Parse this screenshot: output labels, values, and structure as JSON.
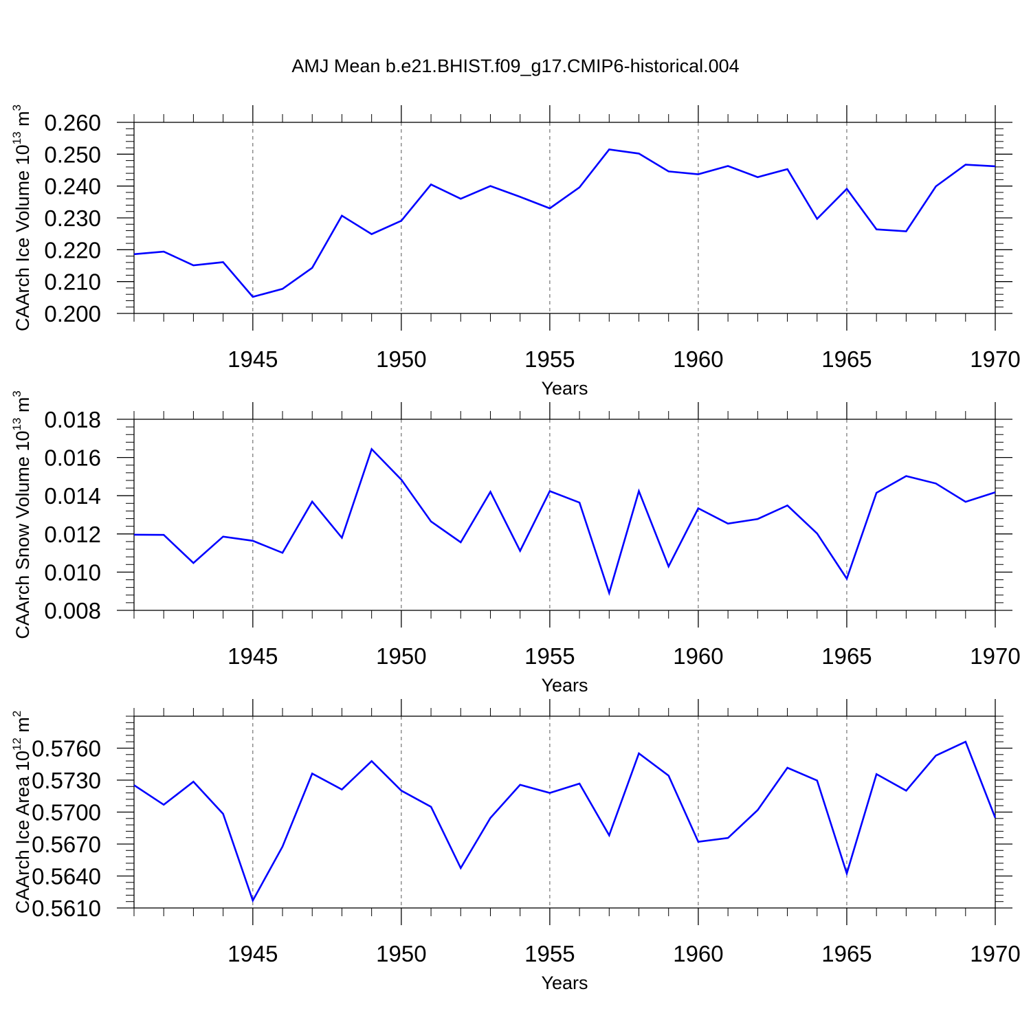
{
  "title": "AMJ Mean b.e21.BHIST.f09_g17.CMIP6-historical.004",
  "line_color": "#0000ff",
  "chart_data": [
    {
      "type": "line",
      "title": "AMJ Mean b.e21.BHIST.f09_g17.CMIP6-historical.004",
      "ylabel_main": "CAArch Ice Volume 10",
      "ylabel_exp": "13",
      "ylabel_unit": " m",
      "ylabel_unit_exp": "3",
      "xlabel": "Years",
      "xlim": [
        1941,
        1970
      ],
      "ylim": [
        0.2,
        0.26
      ],
      "xticks": [
        1945,
        1950,
        1955,
        1960,
        1965,
        1970
      ],
      "yticks": [
        0.2,
        0.21,
        0.22,
        0.23,
        0.24,
        0.25,
        0.26
      ],
      "ytick_labels": [
        "0.200",
        "0.210",
        "0.220",
        "0.230",
        "0.240",
        "0.250",
        "0.260"
      ],
      "grid": "vertical dashed at major x ticks",
      "x": [
        1941,
        1942,
        1943,
        1944,
        1945,
        1946,
        1947,
        1948,
        1949,
        1950,
        1951,
        1952,
        1953,
        1954,
        1955,
        1956,
        1957,
        1958,
        1959,
        1960,
        1961,
        1962,
        1963,
        1964,
        1965,
        1966,
        1967,
        1968,
        1969,
        1970
      ],
      "values": [
        0.2186,
        0.2194,
        0.2151,
        0.2161,
        0.2052,
        0.2077,
        0.2143,
        0.2307,
        0.2249,
        0.2291,
        0.2405,
        0.236,
        0.24,
        0.2366,
        0.233,
        0.2396,
        0.2515,
        0.2502,
        0.2446,
        0.2437,
        0.2463,
        0.2428,
        0.2453,
        0.2297,
        0.2391,
        0.2264,
        0.2258,
        0.2399,
        0.2467,
        0.2462
      ]
    },
    {
      "type": "line",
      "ylabel_main": "CAArch Snow Volume 10",
      "ylabel_exp": "13",
      "ylabel_unit": " m",
      "ylabel_unit_exp": "3",
      "xlabel": "Years",
      "xlim": [
        1941,
        1970
      ],
      "ylim": [
        0.008,
        0.018
      ],
      "xticks": [
        1945,
        1950,
        1955,
        1960,
        1965,
        1970
      ],
      "yticks": [
        0.008,
        0.01,
        0.012,
        0.014,
        0.016,
        0.018
      ],
      "ytick_labels": [
        "0.008",
        "0.010",
        "0.012",
        "0.014",
        "0.016",
        "0.018"
      ],
      "grid": "vertical dashed at major x ticks",
      "x": [
        1941,
        1942,
        1943,
        1944,
        1945,
        1946,
        1947,
        1948,
        1949,
        1950,
        1951,
        1952,
        1953,
        1954,
        1955,
        1956,
        1957,
        1958,
        1959,
        1960,
        1961,
        1962,
        1963,
        1964,
        1965,
        1966,
        1967,
        1968,
        1969,
        1970
      ],
      "values": [
        0.01196,
        0.01195,
        0.01048,
        0.01186,
        0.01164,
        0.01101,
        0.01369,
        0.0118,
        0.01644,
        0.01484,
        0.01265,
        0.01156,
        0.0142,
        0.01111,
        0.01424,
        0.01364,
        0.00891,
        0.01424,
        0.0103,
        0.01334,
        0.01254,
        0.01278,
        0.01349,
        0.01202,
        0.00966,
        0.01415,
        0.01503,
        0.01464,
        0.01368,
        0.01418
      ]
    },
    {
      "type": "line",
      "ylabel_main": "CAArch Ice Area 10",
      "ylabel_exp": "12",
      "ylabel_unit": " m",
      "ylabel_unit_exp": "2",
      "xlabel": "Years",
      "xlim": [
        1941,
        1970
      ],
      "ylim": [
        0.561,
        0.579
      ],
      "xticks": [
        1945,
        1950,
        1955,
        1960,
        1965,
        1970
      ],
      "yticks": [
        0.561,
        0.564,
        0.567,
        0.57,
        0.573,
        0.576
      ],
      "ytick_labels": [
        "0.5610",
        "0.5640",
        "0.5670",
        "0.5700",
        "0.5730",
        "0.5760"
      ],
      "grid": "vertical dashed at major x ticks",
      "x": [
        1941,
        1942,
        1943,
        1944,
        1945,
        1946,
        1947,
        1948,
        1949,
        1950,
        1951,
        1952,
        1953,
        1954,
        1955,
        1956,
        1957,
        1958,
        1959,
        1960,
        1961,
        1962,
        1963,
        1964,
        1965,
        1966,
        1967,
        1968,
        1969,
        1970
      ],
      "values": [
        0.57253,
        0.57069,
        0.57285,
        0.56983,
        0.5617,
        0.56676,
        0.57361,
        0.57212,
        0.57479,
        0.57201,
        0.5705,
        0.56475,
        0.56945,
        0.57256,
        0.5718,
        0.57267,
        0.56782,
        0.57551,
        0.57342,
        0.56721,
        0.56757,
        0.57019,
        0.57416,
        0.57296,
        0.56424,
        0.57356,
        0.57201,
        0.5753,
        0.5766,
        0.56946
      ]
    }
  ]
}
